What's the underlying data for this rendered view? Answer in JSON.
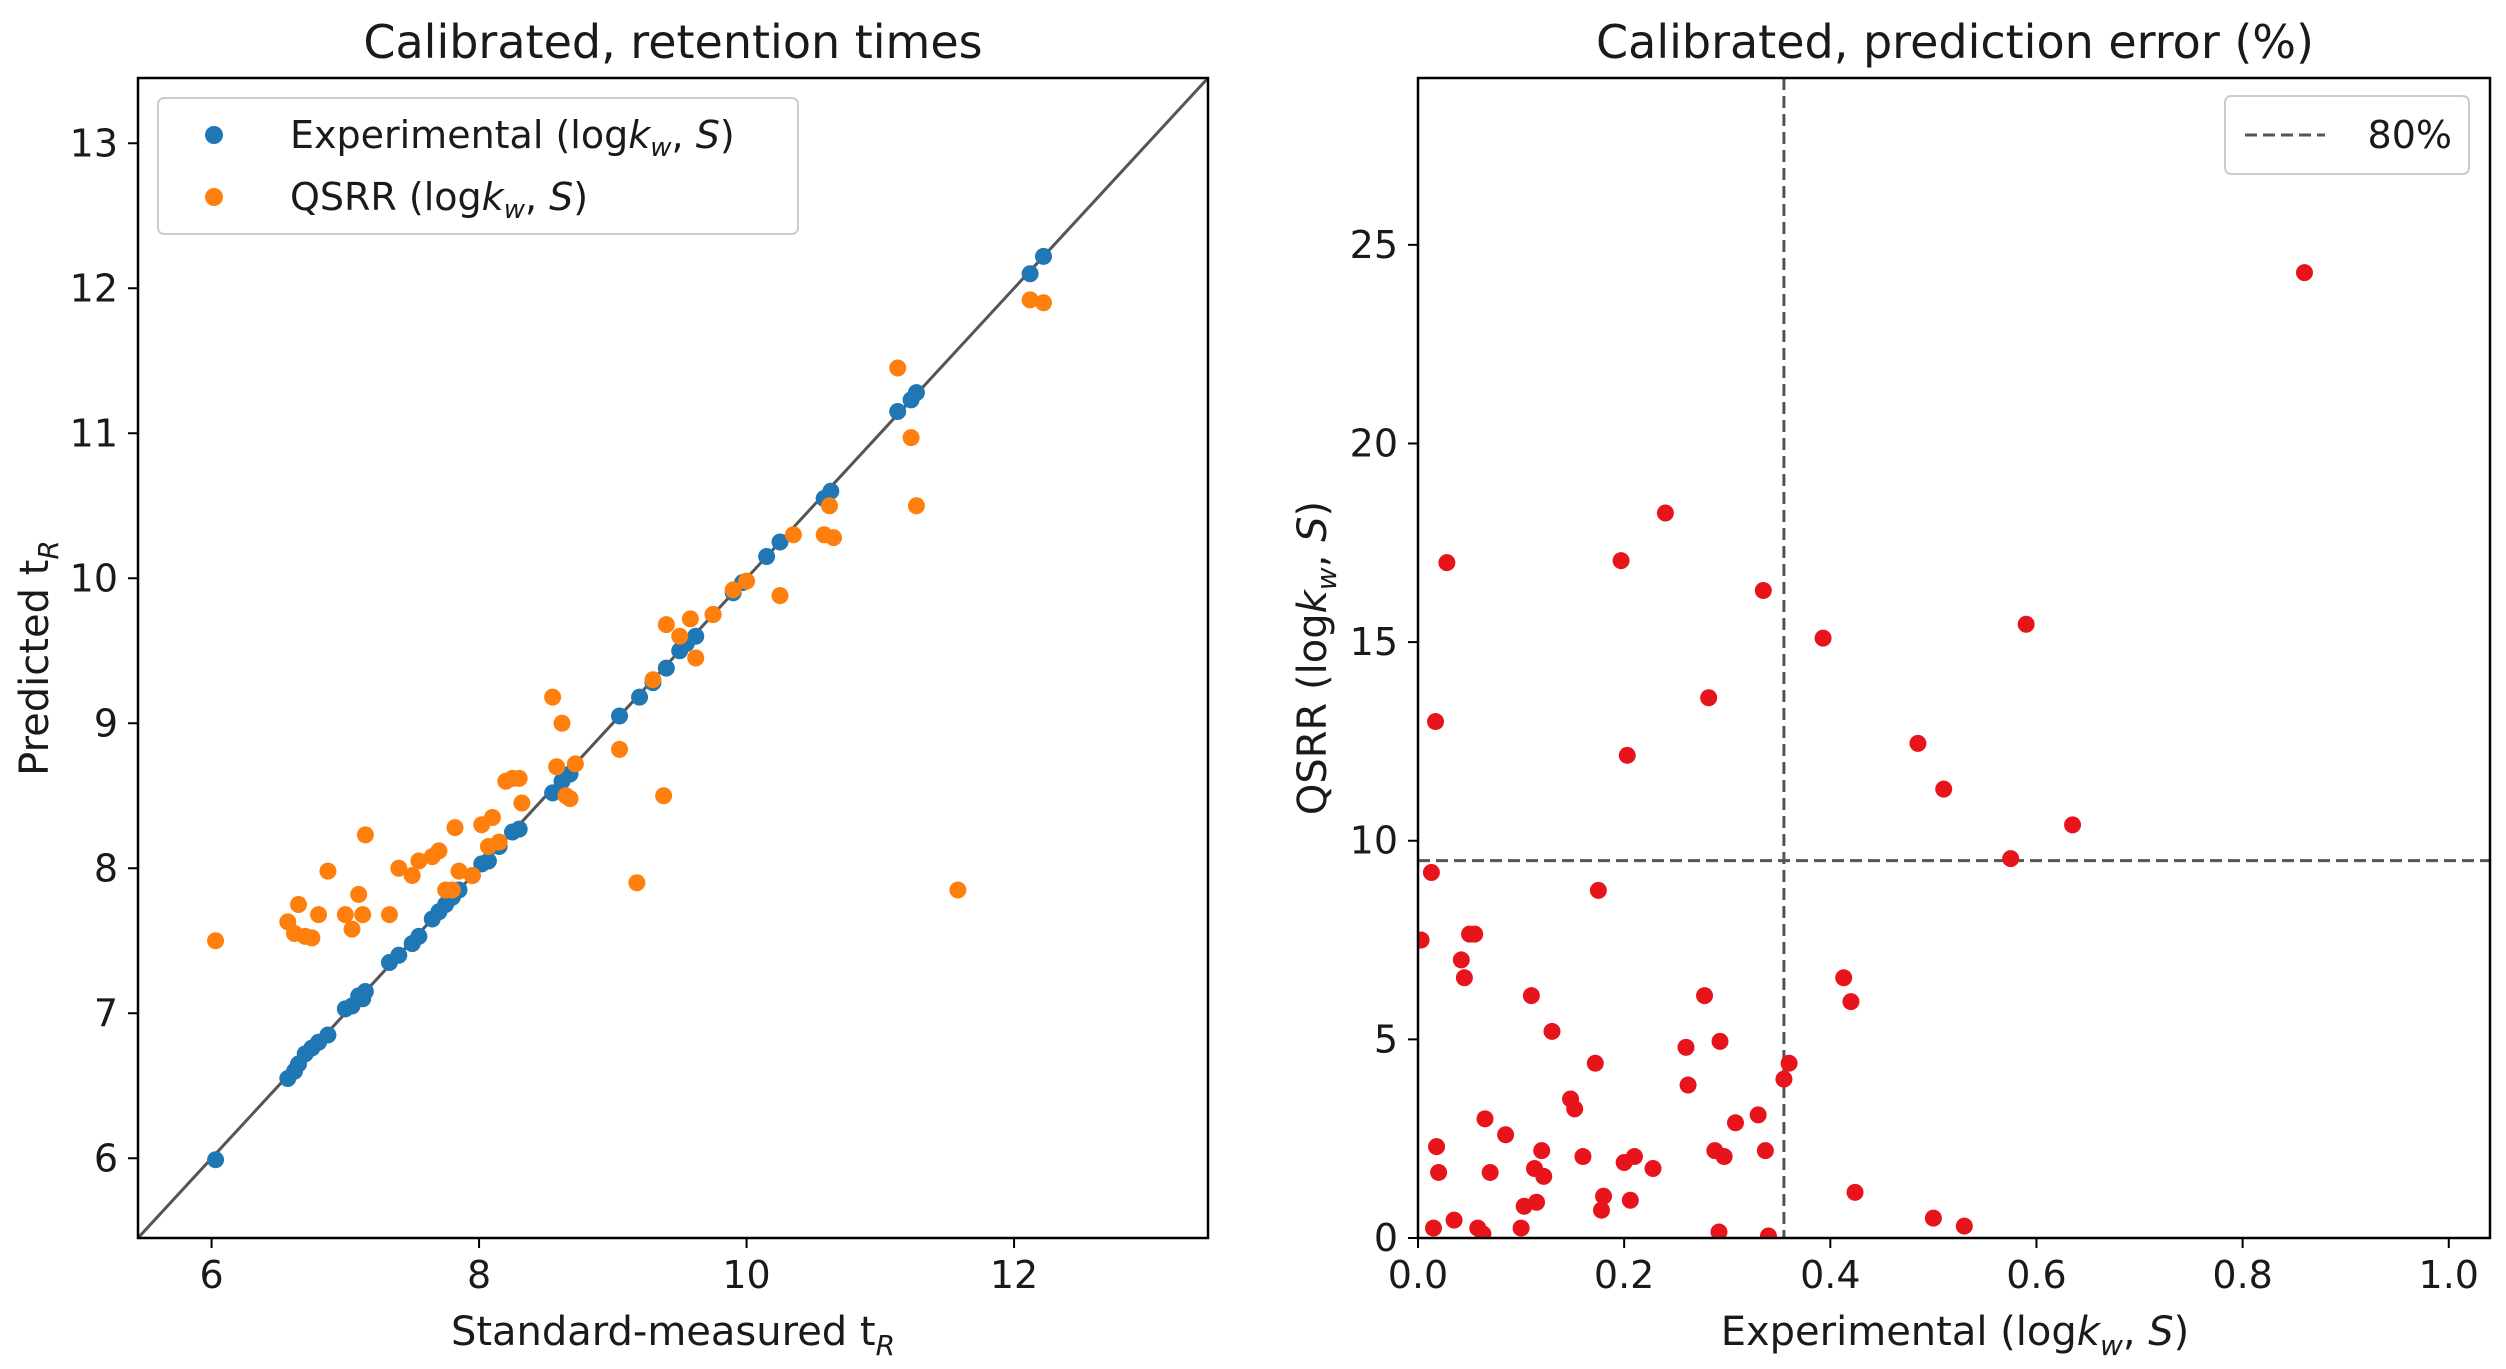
{
  "chart_data": [
    {
      "type": "scatter",
      "title": "Calibrated, retention times",
      "xlabel": "Standard-measured t",
      "xlabel_sub": "R",
      "ylabel": "Predicted t",
      "ylabel_sub": "R",
      "xlim": [
        5.45,
        13.45
      ],
      "ylim": [
        5.45,
        13.45
      ],
      "xticks": [
        "6",
        "8",
        "10",
        "12"
      ],
      "yticks": [
        "6",
        "7",
        "8",
        "9",
        "10",
        "11",
        "12",
        "13"
      ],
      "reference_line": "y = x",
      "legend": {
        "location": "upper-left",
        "entries": [
          "Experimental (logk_w, S)",
          "QSRR (logk_w, S)"
        ]
      },
      "series": [
        {
          "name": "Experimental (logkw, S)",
          "color": "#1f77b4",
          "points": [
            [
              6.03,
              5.99
            ],
            [
              6.57,
              6.55
            ],
            [
              6.62,
              6.6
            ],
            [
              6.65,
              6.65
            ],
            [
              6.7,
              6.72
            ],
            [
              6.75,
              6.76
            ],
            [
              6.8,
              6.8
            ],
            [
              6.87,
              6.85
            ],
            [
              7.0,
              7.03
            ],
            [
              7.05,
              7.05
            ],
            [
              7.1,
              7.12
            ],
            [
              7.13,
              7.1
            ],
            [
              7.15,
              7.15
            ],
            [
              7.33,
              7.35
            ],
            [
              7.4,
              7.4
            ],
            [
              7.5,
              7.48
            ],
            [
              7.55,
              7.53
            ],
            [
              7.65,
              7.65
            ],
            [
              7.7,
              7.7
            ],
            [
              7.75,
              7.75
            ],
            [
              7.8,
              7.8
            ],
            [
              7.85,
              7.85
            ],
            [
              7.95,
              7.95
            ],
            [
              8.02,
              8.03
            ],
            [
              8.07,
              8.05
            ],
            [
              8.15,
              8.15
            ],
            [
              8.25,
              8.25
            ],
            [
              8.3,
              8.27
            ],
            [
              8.55,
              8.52
            ],
            [
              8.62,
              8.6
            ],
            [
              8.68,
              8.65
            ],
            [
              9.05,
              9.05
            ],
            [
              9.2,
              9.18
            ],
            [
              9.3,
              9.28
            ],
            [
              9.4,
              9.38
            ],
            [
              9.5,
              9.5
            ],
            [
              9.55,
              9.55
            ],
            [
              9.62,
              9.6
            ],
            [
              9.75,
              9.75
            ],
            [
              9.9,
              9.9
            ],
            [
              9.97,
              9.97
            ],
            [
              10.15,
              10.15
            ],
            [
              10.25,
              10.25
            ],
            [
              10.58,
              10.55
            ],
            [
              10.63,
              10.6
            ],
            [
              11.13,
              11.15
            ],
            [
              11.23,
              11.23
            ],
            [
              11.27,
              11.28
            ],
            [
              12.12,
              12.1
            ],
            [
              12.22,
              12.22
            ]
          ]
        },
        {
          "name": "QSRR (logkw, S)",
          "color": "#ff7f0e",
          "points": [
            [
              6.03,
              7.5
            ],
            [
              6.57,
              7.63
            ],
            [
              6.62,
              7.55
            ],
            [
              6.65,
              7.75
            ],
            [
              6.7,
              7.53
            ],
            [
              6.75,
              7.52
            ],
            [
              6.8,
              7.68
            ],
            [
              6.87,
              7.98
            ],
            [
              7.0,
              7.68
            ],
            [
              7.05,
              7.58
            ],
            [
              7.1,
              7.82
            ],
            [
              7.13,
              7.68
            ],
            [
              7.15,
              8.23
            ],
            [
              7.33,
              7.68
            ],
            [
              7.4,
              8.0
            ],
            [
              7.5,
              7.95
            ],
            [
              7.55,
              8.05
            ],
            [
              7.65,
              8.08
            ],
            [
              7.7,
              8.12
            ],
            [
              7.75,
              7.85
            ],
            [
              7.8,
              7.85
            ],
            [
              7.82,
              8.28
            ],
            [
              7.85,
              7.98
            ],
            [
              7.95,
              7.95
            ],
            [
              8.02,
              8.3
            ],
            [
              8.07,
              8.15
            ],
            [
              8.1,
              8.35
            ],
            [
              8.15,
              8.18
            ],
            [
              8.2,
              8.6
            ],
            [
              8.25,
              8.62
            ],
            [
              8.3,
              8.62
            ],
            [
              8.32,
              8.45
            ],
            [
              8.55,
              9.18
            ],
            [
              8.58,
              8.7
            ],
            [
              8.62,
              9.0
            ],
            [
              8.65,
              8.5
            ],
            [
              8.68,
              8.48
            ],
            [
              8.72,
              8.72
            ],
            [
              9.05,
              8.82
            ],
            [
              9.18,
              7.9
            ],
            [
              9.3,
              9.3
            ],
            [
              9.38,
              8.5
            ],
            [
              9.4,
              9.68
            ],
            [
              9.5,
              9.6
            ],
            [
              9.58,
              9.72
            ],
            [
              9.62,
              9.45
            ],
            [
              9.75,
              9.75
            ],
            [
              9.9,
              9.92
            ],
            [
              10.0,
              9.98
            ],
            [
              10.25,
              9.88
            ],
            [
              10.35,
              10.3
            ],
            [
              10.58,
              10.3
            ],
            [
              10.62,
              10.5
            ],
            [
              10.65,
              10.28
            ],
            [
              11.13,
              11.45
            ],
            [
              11.23,
              10.97
            ],
            [
              11.27,
              10.5
            ],
            [
              11.58,
              7.85
            ],
            [
              12.12,
              11.92
            ],
            [
              12.22,
              11.9
            ]
          ]
        }
      ]
    },
    {
      "type": "scatter",
      "title": "Calibrated, prediction error (%)",
      "xlabel": "Experimental (logk_w, S)",
      "ylabel": "QSRR (logk_w, S)",
      "xlim": [
        0.0,
        1.04
      ],
      "ylim": [
        0.0,
        29.2
      ],
      "xticks": [
        "0.0",
        "0.2",
        "0.4",
        "0.6",
        "0.8",
        "1.0"
      ],
      "yticks": [
        "0",
        "5",
        "10",
        "15",
        "20",
        "25"
      ],
      "reference_lines": {
        "vertical_x": 0.355,
        "horizontal_y": 9.5,
        "style": "dashed"
      },
      "legend": {
        "location": "upper-right",
        "entries": [
          "80%"
        ]
      },
      "series": [
        {
          "name": "error",
          "color": "#e8141b",
          "points": [
            [
              0.003,
              7.5
            ],
            [
              0.013,
              9.2
            ],
            [
              0.015,
              0.25
            ],
            [
              0.017,
              13.0
            ],
            [
              0.018,
              2.3
            ],
            [
              0.02,
              1.65
            ],
            [
              0.028,
              17.0
            ],
            [
              0.035,
              0.45
            ],
            [
              0.042,
              7.0
            ],
            [
              0.045,
              6.55
            ],
            [
              0.05,
              7.65
            ],
            [
              0.055,
              7.65
            ],
            [
              0.058,
              0.25
            ],
            [
              0.063,
              0.1
            ],
            [
              0.065,
              3.0
            ],
            [
              0.07,
              1.65
            ],
            [
              0.085,
              2.6
            ],
            [
              0.1,
              0.25
            ],
            [
              0.103,
              0.8
            ],
            [
              0.11,
              6.1
            ],
            [
              0.113,
              1.75
            ],
            [
              0.115,
              0.9
            ],
            [
              0.12,
              2.2
            ],
            [
              0.122,
              1.55
            ],
            [
              0.13,
              5.2
            ],
            [
              0.148,
              3.5
            ],
            [
              0.152,
              3.25
            ],
            [
              0.16,
              2.05
            ],
            [
              0.172,
              4.4
            ],
            [
              0.175,
              8.75
            ],
            [
              0.178,
              0.7
            ],
            [
              0.18,
              1.05
            ],
            [
              0.197,
              17.05
            ],
            [
              0.2,
              1.9
            ],
            [
              0.203,
              12.15
            ],
            [
              0.206,
              0.95
            ],
            [
              0.21,
              2.05
            ],
            [
              0.228,
              1.75
            ],
            [
              0.24,
              18.25
            ],
            [
              0.26,
              4.8
            ],
            [
              0.262,
              3.85
            ],
            [
              0.278,
              6.1
            ],
            [
              0.282,
              13.6
            ],
            [
              0.288,
              2.2
            ],
            [
              0.292,
              0.15
            ],
            [
              0.293,
              4.95
            ],
            [
              0.297,
              2.05
            ],
            [
              0.308,
              2.9
            ],
            [
              0.33,
              3.1
            ],
            [
              0.335,
              16.3
            ],
            [
              0.337,
              2.2
            ],
            [
              0.34,
              0.05
            ],
            [
              0.355,
              4.0
            ],
            [
              0.36,
              4.4
            ],
            [
              0.393,
              15.1
            ],
            [
              0.413,
              6.55
            ],
            [
              0.42,
              5.95
            ],
            [
              0.424,
              1.15
            ],
            [
              0.485,
              12.45
            ],
            [
              0.5,
              0.5
            ],
            [
              0.51,
              11.3
            ],
            [
              0.53,
              0.3
            ],
            [
              0.575,
              9.55
            ],
            [
              0.59,
              15.45
            ],
            [
              0.635,
              10.4
            ],
            [
              0.86,
              24.3
            ]
          ]
        }
      ]
    }
  ]
}
